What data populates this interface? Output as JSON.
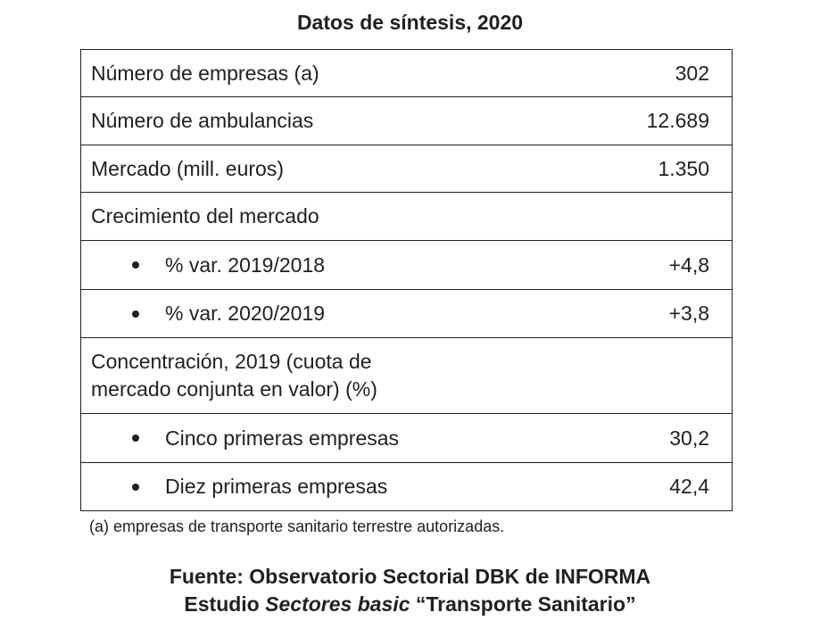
{
  "title": "Datos de síntesis, 2020",
  "rows": [
    {
      "label": "Número de empresas (a)",
      "value": "302"
    },
    {
      "label": "Número de ambulancias",
      "value": "12.689"
    },
    {
      "label": "Mercado (mill. euros)",
      "value": "1.350"
    },
    {
      "label": "Crecimiento del mercado",
      "value": ""
    },
    {
      "label": "% var. 2019/2018",
      "value": "+4,8"
    },
    {
      "label": "% var. 2020/2019",
      "value": "+3,8"
    },
    {
      "label_line1": "Concentración, 2019 (cuota de",
      "label_line2": "mercado conjunta en valor) (%)",
      "value": ""
    },
    {
      "label": "Cinco primeras empresas",
      "value": "30,2"
    },
    {
      "label": "Diez primeras empresas",
      "value": "42,4"
    }
  ],
  "footnote": "(a) empresas de transporte sanitario terrestre autorizadas.",
  "source": {
    "line1": "Fuente: Observatorio Sectorial DBK de INFORMA",
    "line2_prefix": "Estudio ",
    "line2_italic": "Sectores basic",
    "line2_suffix": " “Transporte Sanitario”"
  }
}
